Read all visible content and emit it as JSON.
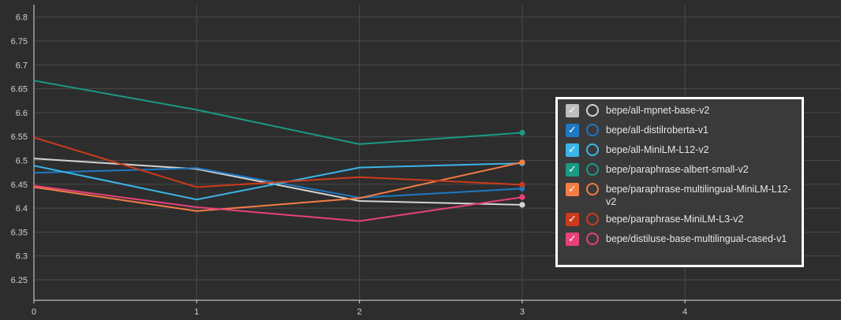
{
  "chart_data": {
    "type": "line",
    "title": "",
    "xlabel": "",
    "ylabel": "",
    "xlim": [
      0,
      5
    ],
    "ylim": [
      6.2,
      6.83
    ],
    "x_ticks": [
      0,
      1,
      2,
      3,
      4
    ],
    "y_ticks": [
      6.25,
      6.3,
      6.35,
      6.4,
      6.45,
      6.5,
      6.55,
      6.6,
      6.65,
      6.7,
      6.75,
      6.8
    ],
    "grid": true,
    "legend_position": "right",
    "series": [
      {
        "name": "bepe/all-mpnet-base-v2",
        "color": "#d3d3d3",
        "x": [
          0,
          1,
          2,
          3
        ],
        "y": [
          6.504,
          6.482,
          6.415,
          6.407
        ]
      },
      {
        "name": "bepe/all-distilroberta-v1",
        "color": "#1e78c2",
        "x": [
          0,
          1,
          2,
          3
        ],
        "y": [
          6.474,
          6.484,
          6.422,
          6.441
        ]
      },
      {
        "name": "bepe/all-MiniLM-L12-v2",
        "color": "#3bb5e8",
        "x": [
          0,
          1,
          2,
          3
        ],
        "y": [
          6.489,
          6.418,
          6.485,
          6.494
        ]
      },
      {
        "name": "bepe/paraphrase-albert-small-v2",
        "color": "#1a9a85",
        "x": [
          0,
          1,
          2,
          3
        ],
        "y": [
          6.667,
          6.606,
          6.534,
          6.558
        ]
      },
      {
        "name": "bepe/paraphrase-multilingual-MiniLM-L12-v2",
        "color": "#f47c45",
        "x": [
          0,
          1,
          2,
          3
        ],
        "y": [
          6.444,
          6.394,
          6.421,
          6.496
        ]
      },
      {
        "name": "bepe/paraphrase-MiniLM-L3-v2",
        "color": "#cc3a1c",
        "x": [
          0,
          1,
          2,
          3
        ],
        "y": [
          6.548,
          6.444,
          6.465,
          6.449
        ]
      },
      {
        "name": "bepe/distiluse-base-multilingual-cased-v1",
        "color": "#e7407a",
        "x": [
          0,
          1,
          2,
          3
        ],
        "y": [
          6.447,
          6.402,
          6.373,
          6.423
        ]
      }
    ]
  },
  "legend": {
    "check_glyph": "✓",
    "items": [
      {
        "label": "bepe/all-mpnet-base-v2",
        "box_color": "#bdbdbd",
        "ring_color": "#d3d3d3"
      },
      {
        "label": "bepe/all-distilroberta-v1",
        "box_color": "#1e78c2",
        "ring_color": "#1e78c2"
      },
      {
        "label": "bepe/all-MiniLM-L12-v2",
        "box_color": "#3bb5e8",
        "ring_color": "#3bb5e8"
      },
      {
        "label": "bepe/paraphrase-albert-small-v2",
        "box_color": "#1a9a85",
        "ring_color": "#1a9a85"
      },
      {
        "label": "bepe/paraphrase-multilingual-MiniLM-L12-v2",
        "box_color": "#f47c45",
        "ring_color": "#f47c45"
      },
      {
        "label": "bepe/paraphrase-MiniLM-L3-v2",
        "box_color": "#cc3a1c",
        "ring_color": "#cc3a1c"
      },
      {
        "label": "bepe/distiluse-base-multilingual-cased-v1",
        "box_color": "#e7407a",
        "ring_color": "#e7407a"
      }
    ]
  }
}
